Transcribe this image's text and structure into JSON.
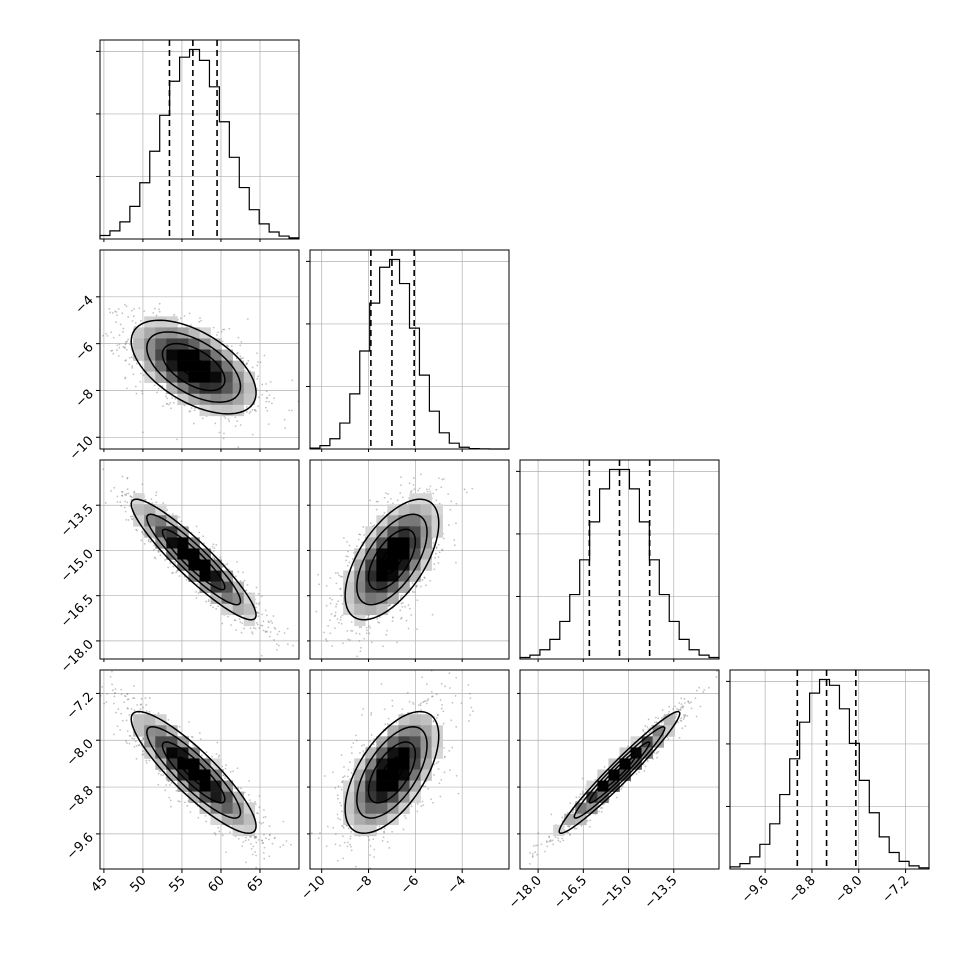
{
  "chart_data": {
    "type": "corner",
    "grid": true,
    "parameters": [
      {
        "range": [
          44.5,
          70.0
        ],
        "ticks": [
          45,
          50,
          55,
          60,
          65
        ],
        "tick_labels": [
          "45",
          "50",
          "55",
          "60",
          "65"
        ],
        "mean": 56.5,
        "std": 4.0,
        "q16": 53.4,
        "q50": 56.4,
        "q84": 59.5
      },
      {
        "range": [
          -10.5,
          -2.0
        ],
        "ticks": [
          -10,
          -8,
          -6,
          -4
        ],
        "tick_labels": [
          "−10",
          "−8",
          "−6",
          "−4"
        ],
        "mean": -7.0,
        "std": 1.0,
        "q16": -7.9,
        "q50": -7.0,
        "q84": -6.05
      },
      {
        "range": [
          -18.6,
          -12.0
        ],
        "ticks": [
          -18.0,
          -16.5,
          -15.0,
          -13.5
        ],
        "tick_labels": [
          "−18.0",
          "−16.5",
          "−15.0",
          "−13.5"
        ],
        "mean": -15.3,
        "std": 1.0,
        "q16": -16.3,
        "q50": -15.3,
        "q84": -14.3
      },
      {
        "range": [
          -10.2,
          -6.8
        ],
        "ticks": [
          -9.6,
          -8.8,
          -8.0,
          -7.2
        ],
        "tick_labels": [
          "−9.6",
          "−8.8",
          "−8.0",
          "−7.2"
        ],
        "mean": -8.55,
        "std": 0.52,
        "q16": -9.05,
        "q50": -8.55,
        "q84": -8.05
      }
    ],
    "correlations": [
      [
        0,
        1,
        -0.55
      ],
      [
        0,
        2,
        -0.92
      ],
      [
        0,
        3,
        -0.88
      ],
      [
        1,
        2,
        0.6
      ],
      [
        1,
        3,
        0.6
      ],
      [
        2,
        3,
        0.97
      ]
    ],
    "hist_bins": 20,
    "contour_levels": [
      0.5,
      1.0,
      1.5,
      2.0
    ]
  }
}
